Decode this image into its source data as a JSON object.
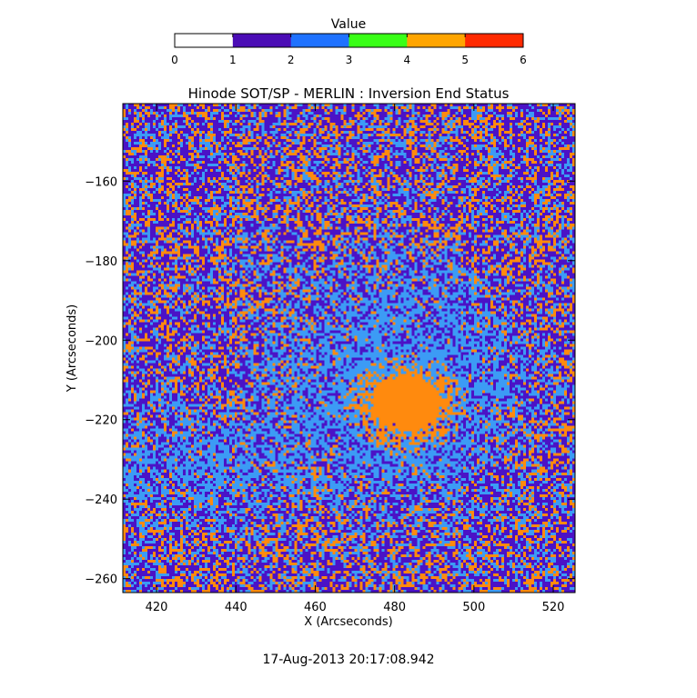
{
  "chart_data": {
    "type": "heatmap",
    "title": "Hinode SOT/SP - MERLIN : Inversion End Status",
    "xlabel": "X (Arcseconds)",
    "ylabel": "Y (Arcseconds)",
    "xlim": [
      411.5,
      525.5
    ],
    "ylim": [
      -263.5,
      -140.5
    ],
    "x_ticks": [
      420,
      440,
      460,
      480,
      500,
      520
    ],
    "y_ticks": [
      -160,
      -180,
      -200,
      -220,
      -240,
      -260
    ],
    "colorbar": {
      "label": "Value",
      "range": [
        0,
        6
      ],
      "ticks": [
        0,
        1,
        2,
        3,
        4,
        5,
        6
      ],
      "colors": [
        "#ffffff",
        "#4b0db5",
        "#1f72ff",
        "#39ff17",
        "#ffa500",
        "#ff2a00"
      ]
    },
    "values_present": [
      1,
      2,
      4
    ],
    "value_colors": {
      "1": "#4b12c6",
      "2": "#3c9bf5",
      "4": "#ff8a0e"
    },
    "features": [
      {
        "value": 4,
        "description": "dense region",
        "x_center": 483,
        "y_center": -216
      },
      {
        "value": 2,
        "description": "diffuse region",
        "x_center": 482,
        "y_center": -212
      },
      {
        "value": 2,
        "description": "diffuse region",
        "x_center": 440,
        "y_center": -232
      },
      {
        "value": 2,
        "description": "diffuse region",
        "x_center": 416,
        "y_center": -230
      }
    ]
  },
  "footer": {
    "timestamp": "17-Aug-2013 20:17:08.942"
  }
}
